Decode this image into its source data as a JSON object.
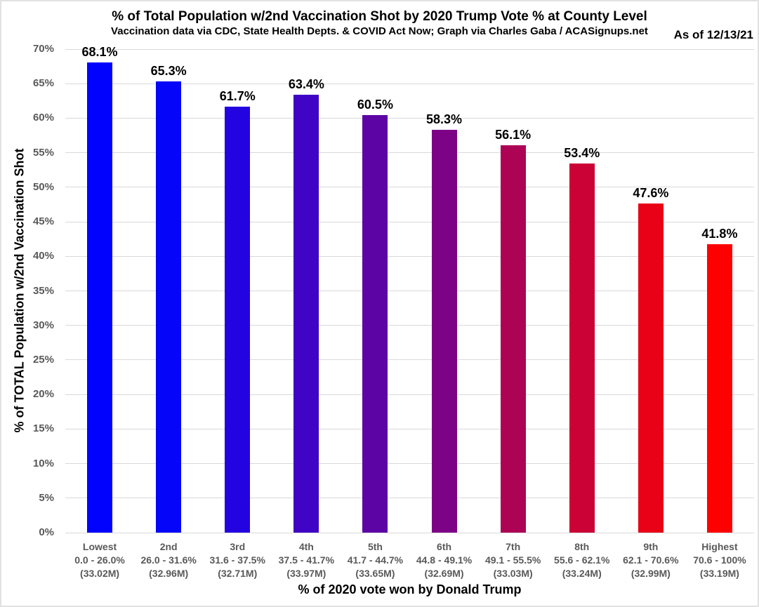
{
  "header": {
    "as_of": "As of 12/13/21"
  },
  "chart_data": {
    "type": "bar",
    "title": "% of Total Population w/2nd Vaccination Shot by 2020 Trump Vote % at County Level",
    "subtitle": "Vaccination data via CDC, State Health Depts. & COVID Act Now; Graph via Charles Gaba / ACASignups.net",
    "annotation": "As of 12/13/21",
    "xlabel": "% of 2020 vote won by Donald Trump",
    "ylabel": "% of TOTAL Population w/2nd Vaccination Shot",
    "ylim": [
      0,
      70
    ],
    "ytick_step": 5,
    "ytick_suffix": "%",
    "grid": true,
    "legend": false,
    "categories": [
      "Lowest",
      "2nd",
      "3rd",
      "4th",
      "5th",
      "6th",
      "7th",
      "8th",
      "9th",
      "Highest"
    ],
    "category_ranges": [
      "0.0 - 26.0%",
      "26.0 - 31.6%",
      "31.6 - 37.5%",
      "37.5 - 41.7%",
      "41.7 - 44.7%",
      "44.8 - 49.1%",
      "49.1 - 55.5%",
      "55.6 - 62.1%",
      "62.1 - 70.6%",
      "70.6 - 100%"
    ],
    "category_populations": [
      "(33.02M)",
      "(32.96M)",
      "(32.71M)",
      "(33.97M)",
      "(33.65M)",
      "(32.69M)",
      "(33.03M)",
      "(33.24M)",
      "(32.99M)",
      "(33.19M)"
    ],
    "values": [
      68.1,
      65.3,
      61.7,
      63.4,
      60.5,
      58.3,
      56.1,
      53.4,
      47.6,
      41.8
    ],
    "value_labels": [
      "68.1%",
      "65.3%",
      "61.7%",
      "63.4%",
      "60.5%",
      "58.3%",
      "56.1%",
      "53.4%",
      "47.6%",
      "41.8%"
    ],
    "bar_colors": [
      "#0101fe",
      "#0505f9",
      "#2304e1",
      "#4004c4",
      "#5d04a4",
      "#7d0386",
      "#ad0355",
      "#ca0236",
      "#e90117",
      "#fe0000"
    ],
    "colors": {
      "gridline": "#d9d9d9",
      "tick_label": "#595959",
      "category_label": "#595959",
      "value_label": "#000000",
      "title": "#000000"
    }
  }
}
